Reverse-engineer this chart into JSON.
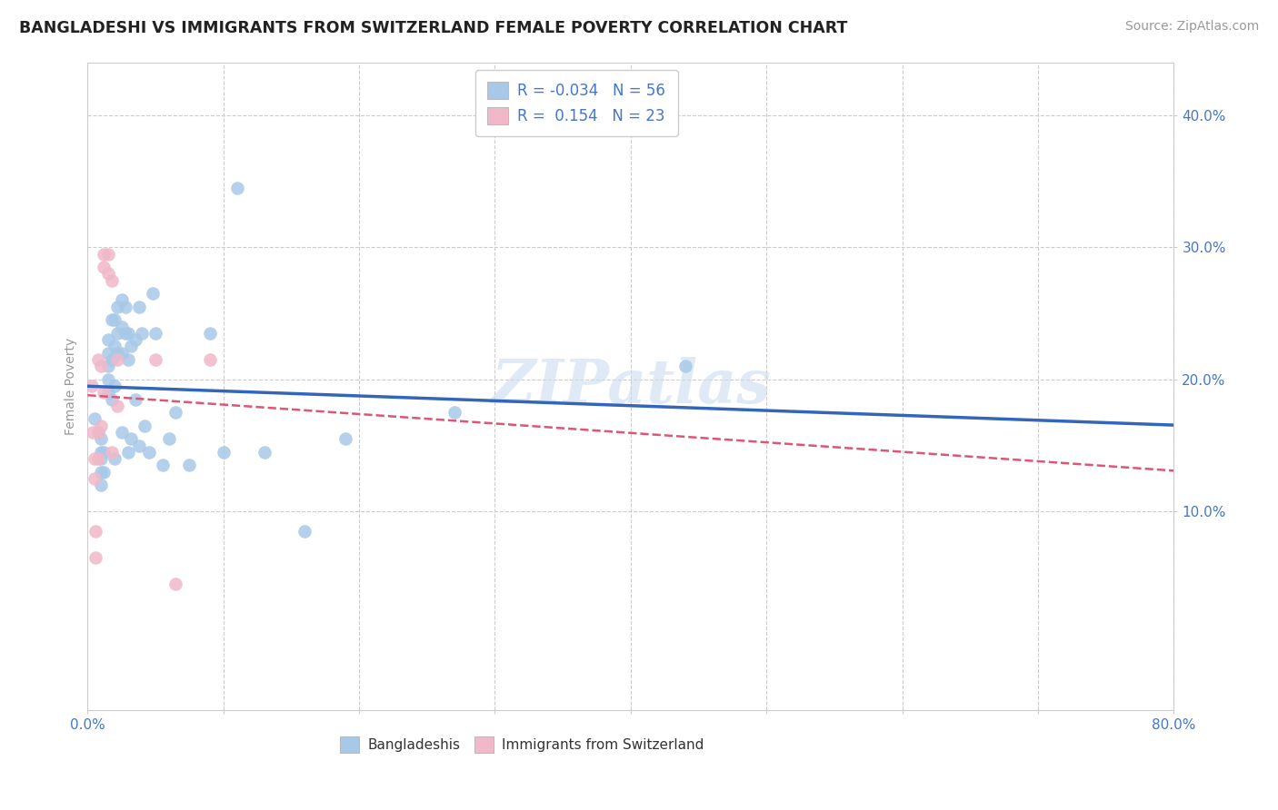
{
  "title": "BANGLADESHI VS IMMIGRANTS FROM SWITZERLAND FEMALE POVERTY CORRELATION CHART",
  "source": "Source: ZipAtlas.com",
  "ylabel": "Female Poverty",
  "xlim": [
    0.0,
    0.8
  ],
  "ylim": [
    -0.05,
    0.44
  ],
  "yticks": [
    0.1,
    0.2,
    0.3,
    0.4
  ],
  "ytick_labels": [
    "10.0%",
    "20.0%",
    "30.0%",
    "40.0%"
  ],
  "xticks": [
    0.0,
    0.1,
    0.2,
    0.3,
    0.4,
    0.5,
    0.6,
    0.7,
    0.8
  ],
  "xtick_labels_show": [
    "0.0%",
    "",
    "",
    "",
    "",
    "",
    "",
    "",
    "80.0%"
  ],
  "r_bangladeshi": -0.034,
  "n_bangladeshi": 56,
  "r_swiss": 0.154,
  "n_swiss": 23,
  "bg_color": "#ffffff",
  "plot_bg_color": "#ffffff",
  "grid_color": "#cccccc",
  "blue_scatter_color": "#a8c8e8",
  "pink_scatter_color": "#f0b8c8",
  "blue_line_color": "#3366bb",
  "pink_line_color": "#dd5577",
  "text_blue": "#4477cc",
  "watermark": "ZIPatlas",
  "bangladeshi_x": [
    0.005,
    0.008,
    0.01,
    0.01,
    0.01,
    0.01,
    0.01,
    0.012,
    0.012,
    0.015,
    0.015,
    0.015,
    0.015,
    0.015,
    0.018,
    0.018,
    0.018,
    0.02,
    0.02,
    0.02,
    0.02,
    0.022,
    0.022,
    0.022,
    0.025,
    0.025,
    0.025,
    0.025,
    0.028,
    0.028,
    0.03,
    0.03,
    0.03,
    0.032,
    0.032,
    0.035,
    0.035,
    0.038,
    0.038,
    0.04,
    0.042,
    0.045,
    0.048,
    0.05,
    0.055,
    0.06,
    0.065,
    0.075,
    0.09,
    0.1,
    0.11,
    0.13,
    0.16,
    0.19,
    0.27,
    0.44
  ],
  "bangladeshi_y": [
    0.17,
    0.16,
    0.155,
    0.145,
    0.14,
    0.13,
    0.12,
    0.145,
    0.13,
    0.2,
    0.19,
    0.22,
    0.23,
    0.21,
    0.245,
    0.215,
    0.185,
    0.245,
    0.225,
    0.195,
    0.14,
    0.255,
    0.235,
    0.22,
    0.26,
    0.24,
    0.22,
    0.16,
    0.255,
    0.235,
    0.235,
    0.215,
    0.145,
    0.225,
    0.155,
    0.23,
    0.185,
    0.255,
    0.15,
    0.235,
    0.165,
    0.145,
    0.265,
    0.235,
    0.135,
    0.155,
    0.175,
    0.135,
    0.235,
    0.145,
    0.345,
    0.145,
    0.085,
    0.155,
    0.175,
    0.21
  ],
  "swiss_x": [
    0.003,
    0.004,
    0.005,
    0.005,
    0.006,
    0.006,
    0.008,
    0.008,
    0.008,
    0.01,
    0.01,
    0.012,
    0.012,
    0.012,
    0.015,
    0.015,
    0.018,
    0.018,
    0.022,
    0.022,
    0.05,
    0.065,
    0.09
  ],
  "swiss_y": [
    0.195,
    0.16,
    0.14,
    0.125,
    0.085,
    0.065,
    0.215,
    0.16,
    0.14,
    0.21,
    0.165,
    0.295,
    0.285,
    0.19,
    0.295,
    0.28,
    0.275,
    0.145,
    0.215,
    0.18,
    0.215,
    0.045,
    0.215
  ]
}
